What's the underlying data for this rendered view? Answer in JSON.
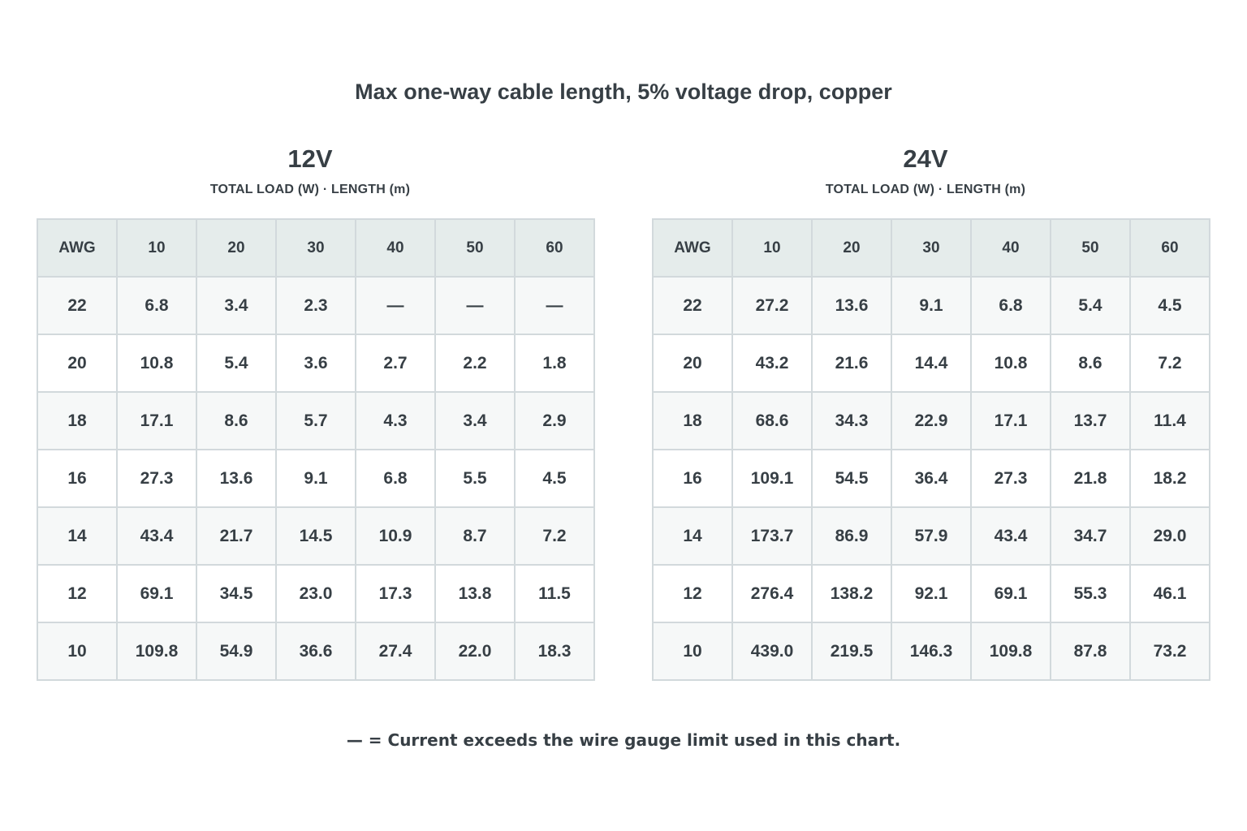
{
  "title": "Max one-way cable length, 5% voltage drop, copper",
  "footnote": "— = Current exceeds the wire gauge limit used in this chart.",
  "colors": {
    "header_bg": "#e5eceb",
    "odd_row_bg": "#f6f8f8",
    "even_row_bg": "#ffffff",
    "border": "#d2d9dc",
    "text": "#373f45"
  },
  "chart_data": [
    {
      "type": "table",
      "title": "12V",
      "subtitle": "TOTAL LOAD (W) · LENGTH (m)",
      "columns": [
        "AWG",
        "10",
        "20",
        "30",
        "40",
        "50",
        "60"
      ],
      "rows": [
        [
          "22",
          "6.8",
          "3.4",
          "2.3",
          "—",
          "—",
          "—"
        ],
        [
          "20",
          "10.8",
          "5.4",
          "3.6",
          "2.7",
          "2.2",
          "1.8"
        ],
        [
          "18",
          "17.1",
          "8.6",
          "5.7",
          "4.3",
          "3.4",
          "2.9"
        ],
        [
          "16",
          "27.3",
          "13.6",
          "9.1",
          "6.8",
          "5.5",
          "4.5"
        ],
        [
          "14",
          "43.4",
          "21.7",
          "14.5",
          "10.9",
          "8.7",
          "7.2"
        ],
        [
          "12",
          "69.1",
          "34.5",
          "23.0",
          "17.3",
          "13.8",
          "11.5"
        ],
        [
          "10",
          "109.8",
          "54.9",
          "36.6",
          "27.4",
          "22.0",
          "18.3"
        ]
      ]
    },
    {
      "type": "table",
      "title": "24V",
      "subtitle": "TOTAL LOAD (W) · LENGTH (m)",
      "columns": [
        "AWG",
        "10",
        "20",
        "30",
        "40",
        "50",
        "60"
      ],
      "rows": [
        [
          "22",
          "27.2",
          "13.6",
          "9.1",
          "6.8",
          "5.4",
          "4.5"
        ],
        [
          "20",
          "43.2",
          "21.6",
          "14.4",
          "10.8",
          "8.6",
          "7.2"
        ],
        [
          "18",
          "68.6",
          "34.3",
          "22.9",
          "17.1",
          "13.7",
          "11.4"
        ],
        [
          "16",
          "109.1",
          "54.5",
          "36.4",
          "27.3",
          "21.8",
          "18.2"
        ],
        [
          "14",
          "173.7",
          "86.9",
          "57.9",
          "43.4",
          "34.7",
          "29.0"
        ],
        [
          "12",
          "276.4",
          "138.2",
          "92.1",
          "69.1",
          "55.3",
          "46.1"
        ],
        [
          "10",
          "439.0",
          "219.5",
          "146.3",
          "109.8",
          "87.8",
          "73.2"
        ]
      ]
    }
  ]
}
